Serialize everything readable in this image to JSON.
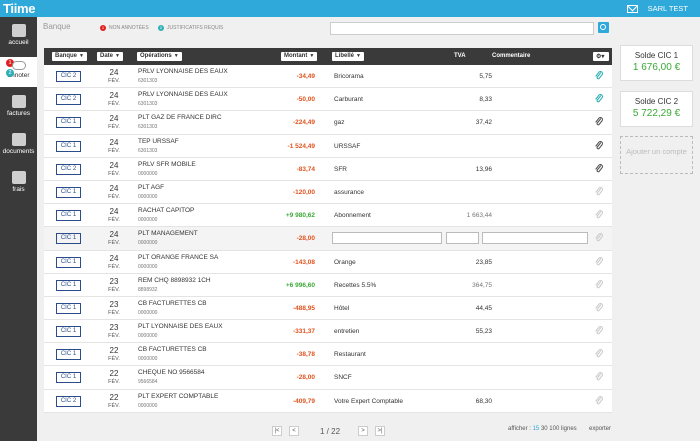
{
  "app": {
    "logo": "Tiime",
    "user": "SARL TEST"
  },
  "nav": [
    {
      "label": "accueil",
      "icon": "dashboard-icon"
    },
    {
      "label": "annoter",
      "icon": "annotate-icon",
      "badge_red": "1",
      "badge_teal": "2"
    },
    {
      "label": "factures",
      "icon": "invoices-icon"
    },
    {
      "label": "documents",
      "icon": "documents-icon"
    },
    {
      "label": "frais",
      "icon": "expenses-icon"
    }
  ],
  "header": {
    "crumb": "Banque",
    "legend_unannotated": "NON ANNOTÉES",
    "legend_required": "JUSTIFICATIFS REQUIS",
    "badge_red": "1",
    "badge_teal": "2",
    "search_placeholder": ""
  },
  "columns": {
    "bank": "Banque",
    "date": "Date",
    "ops": "Opérations",
    "amount": "Montant",
    "libelle": "Libellé",
    "tva": "TVA",
    "comment": "Commentaire"
  },
  "rows": [
    {
      "bank": "CIC 2",
      "day": "24",
      "mon": "FÉV.",
      "label": "PRLV LYONNAISE DES EAUX",
      "ref": "6301303",
      "amount": "-34,49",
      "sign": "neg",
      "libelle": "Bricorama",
      "tva": "5,75",
      "tva_grey": false,
      "clip": "teal"
    },
    {
      "bank": "CIC 2",
      "day": "24",
      "mon": "FÉV.",
      "label": "PRLV LYONNAISE DES EAUX",
      "ref": "6301303",
      "amount": "-50,00",
      "sign": "neg",
      "libelle": "Carburant",
      "tva": "8,33",
      "tva_grey": false,
      "clip": "teal"
    },
    {
      "bank": "CIC 1",
      "day": "24",
      "mon": "FÉV.",
      "label": "PLT GAZ DE FRANCE DIRC",
      "ref": "6301303",
      "amount": "-224,49",
      "sign": "neg",
      "libelle": "gaz",
      "tva": "37,42",
      "tva_grey": false,
      "clip": "dark"
    },
    {
      "bank": "CIC 1",
      "day": "24",
      "mon": "FÉV.",
      "label": "TEP URSSAF",
      "ref": "6301303",
      "amount": "-1 524,49",
      "sign": "neg",
      "libelle": "URSSAF",
      "tva": "",
      "tva_grey": false,
      "clip": "dark"
    },
    {
      "bank": "CIC 2",
      "day": "24",
      "mon": "FÉV.",
      "label": "PRLV SFR MOBILE",
      "ref": "0000000",
      "amount": "-83,74",
      "sign": "neg",
      "libelle": "SFR",
      "tva": "13,96",
      "tva_grey": false,
      "clip": "dark"
    },
    {
      "bank": "CIC 1",
      "day": "24",
      "mon": "FÉV.",
      "label": "PLT AGF",
      "ref": "0000000",
      "amount": "-120,00",
      "sign": "neg",
      "libelle": "assurance",
      "tva": "",
      "tva_grey": false,
      "clip": "light"
    },
    {
      "bank": "CIC 1",
      "day": "24",
      "mon": "FÉV.",
      "label": "RACHAT CAPITOP",
      "ref": "0000000",
      "amount": "+9 980,62",
      "sign": "pos",
      "libelle": "Abonnement",
      "tva": "1 663,44",
      "tva_grey": true,
      "clip": "light"
    },
    {
      "bank": "CIC 1",
      "day": "24",
      "mon": "FÉV.",
      "label": "PLT MANAGEMENT",
      "ref": "0000000",
      "amount": "-28,00",
      "sign": "neg",
      "libelle": "",
      "tva": "",
      "tva_grey": false,
      "clip": "light",
      "editing": true
    },
    {
      "bank": "CIC 1",
      "day": "24",
      "mon": "FÉV.",
      "label": "PLT ORANGE FRANCE SA",
      "ref": "0000000",
      "amount": "-143,08",
      "sign": "neg",
      "libelle": "Orange",
      "tva": "23,85",
      "tva_grey": false,
      "clip": "light"
    },
    {
      "bank": "CIC 1",
      "day": "23",
      "mon": "FÉV.",
      "label": "REM CHQ 8898932 1CH",
      "ref": "8898932",
      "amount": "+6 996,60",
      "sign": "pos",
      "libelle": "Recettes 5.5%",
      "tva": "364,75",
      "tva_grey": true,
      "clip": "light"
    },
    {
      "bank": "CIC 1",
      "day": "23",
      "mon": "FÉV.",
      "label": "CB FACTURETTES CB",
      "ref": "0000000",
      "amount": "-488,95",
      "sign": "neg",
      "libelle": "Hôtel",
      "tva": "44,45",
      "tva_grey": false,
      "clip": "light"
    },
    {
      "bank": "CIC 1",
      "day": "23",
      "mon": "FÉV.",
      "label": "PLT LYONNAISE DES EAUX",
      "ref": "0000000",
      "amount": "-331,37",
      "sign": "neg",
      "libelle": "entretien",
      "tva": "55,23",
      "tva_grey": false,
      "clip": "light"
    },
    {
      "bank": "CIC 1",
      "day": "22",
      "mon": "FÉV.",
      "label": "CB FACTURETTES CB",
      "ref": "0000000",
      "amount": "-38,78",
      "sign": "neg",
      "libelle": "Restaurant",
      "tva": "",
      "tva_grey": false,
      "clip": "light"
    },
    {
      "bank": "CIC 1",
      "day": "22",
      "mon": "FÉV.",
      "label": "CHEQUE NO 9566584",
      "ref": "9566584",
      "amount": "-28,00",
      "sign": "neg",
      "libelle": "SNCF",
      "tva": "",
      "tva_grey": false,
      "clip": "light"
    },
    {
      "bank": "CIC 2",
      "day": "22",
      "mon": "FÉV.",
      "label": "PLT EXPERT COMPTABLE",
      "ref": "0000000",
      "amount": "-409,79",
      "sign": "neg",
      "libelle": "Votre Expert Comptable",
      "tva": "68,30",
      "tva_grey": false,
      "clip": "light"
    }
  ],
  "accounts": [
    {
      "name": "Solde CIC 1",
      "balance": "1 676,00 €"
    },
    {
      "name": "Solde CIC 2",
      "balance": "5 722,29 €"
    }
  ],
  "add_account": "Ajouter un compte",
  "pagination": {
    "first": "|<",
    "prev": "<",
    "text": "1 / 22",
    "next": ">",
    "last": ">|"
  },
  "footer": {
    "afficher": "afficher :",
    "opt15": "15",
    "opt30": "30",
    "opt100": "100",
    "lignes": "lignes",
    "exporter": "exporter"
  },
  "colors": {
    "accent": "#2fa8da",
    "negative": "#e0531e",
    "positive": "#3aaa35",
    "bank_border": "#2a4c8a"
  }
}
